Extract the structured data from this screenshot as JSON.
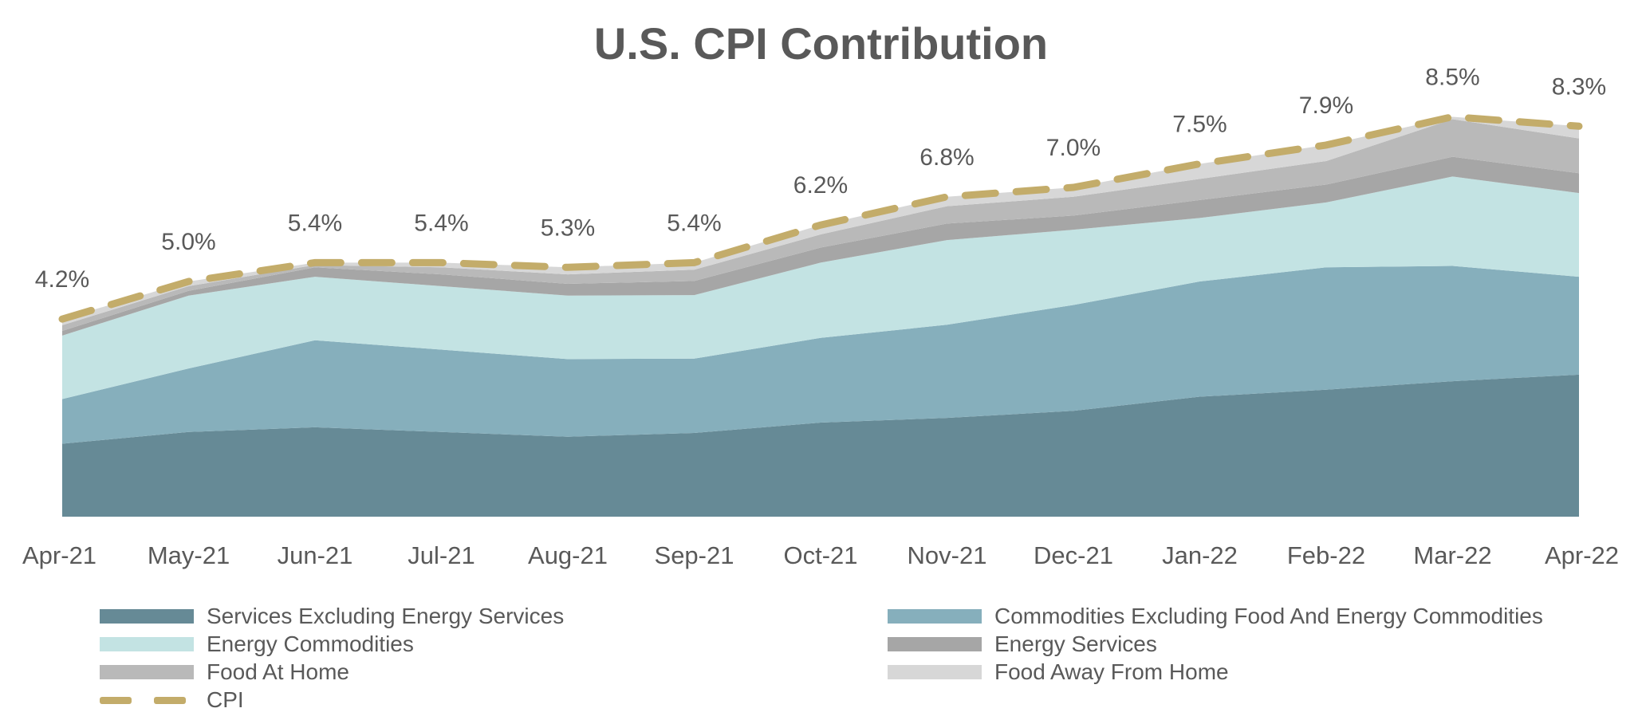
{
  "chart_data": {
    "type": "area",
    "stacked": true,
    "title": "U.S. CPI Contribution",
    "x": [
      "Apr-21",
      "May-21",
      "Jun-21",
      "Jul-21",
      "Aug-21",
      "Sep-21",
      "Oct-21",
      "Nov-21",
      "Dec-21",
      "Jan-22",
      "Feb-22",
      "Mar-22",
      "Apr-22"
    ],
    "ylim": [
      0,
      9.0
    ],
    "grid": false,
    "legend_position": "bottom",
    "series": [
      {
        "name": "Services Excluding Energy Services",
        "color": "#668a96",
        "values": [
          1.55,
          1.8,
          1.9,
          1.8,
          1.7,
          1.78,
          2.0,
          2.1,
          2.25,
          2.55,
          2.7,
          2.88,
          3.02
        ]
      },
      {
        "name": "Commodities Excluding Food And Energy Commodities",
        "color": "#86afbc",
        "values": [
          0.95,
          1.35,
          1.85,
          1.75,
          1.65,
          1.58,
          1.8,
          1.98,
          2.25,
          2.45,
          2.6,
          2.45,
          2.08
        ]
      },
      {
        "name": "Energy Commodities",
        "color": "#c3e3e3",
        "values": [
          1.35,
          1.55,
          1.35,
          1.35,
          1.35,
          1.35,
          1.6,
          1.8,
          1.6,
          1.35,
          1.38,
          1.9,
          1.78
        ]
      },
      {
        "name": "Energy Services",
        "color": "#a6a6a6",
        "values": [
          0.1,
          0.1,
          0.2,
          0.25,
          0.25,
          0.3,
          0.32,
          0.35,
          0.3,
          0.38,
          0.38,
          0.42,
          0.42
        ]
      },
      {
        "name": "Food At Home",
        "color": "#b9b9b9",
        "values": [
          0.12,
          0.1,
          0.05,
          0.15,
          0.2,
          0.24,
          0.28,
          0.37,
          0.4,
          0.45,
          0.5,
          0.8,
          0.74
        ]
      },
      {
        "name": "Food Away From Home",
        "color": "#d7d7d7",
        "values": [
          0.13,
          0.1,
          0.05,
          0.1,
          0.15,
          0.15,
          0.2,
          0.2,
          0.2,
          0.32,
          0.34,
          0.05,
          0.26
        ]
      }
    ],
    "line": {
      "name": "CPI",
      "color": "#c3ac6a",
      "style": "dashed",
      "values": [
        4.2,
        5.0,
        5.4,
        5.4,
        5.3,
        5.4,
        6.2,
        6.8,
        7.0,
        7.5,
        7.9,
        8.5,
        8.3
      ],
      "labels": [
        "4.2%",
        "5.0%",
        "5.4%",
        "5.4%",
        "5.3%",
        "5.4%",
        "6.2%",
        "6.8%",
        "7.0%",
        "7.5%",
        "7.9%",
        "8.5%",
        "8.3%"
      ]
    }
  }
}
